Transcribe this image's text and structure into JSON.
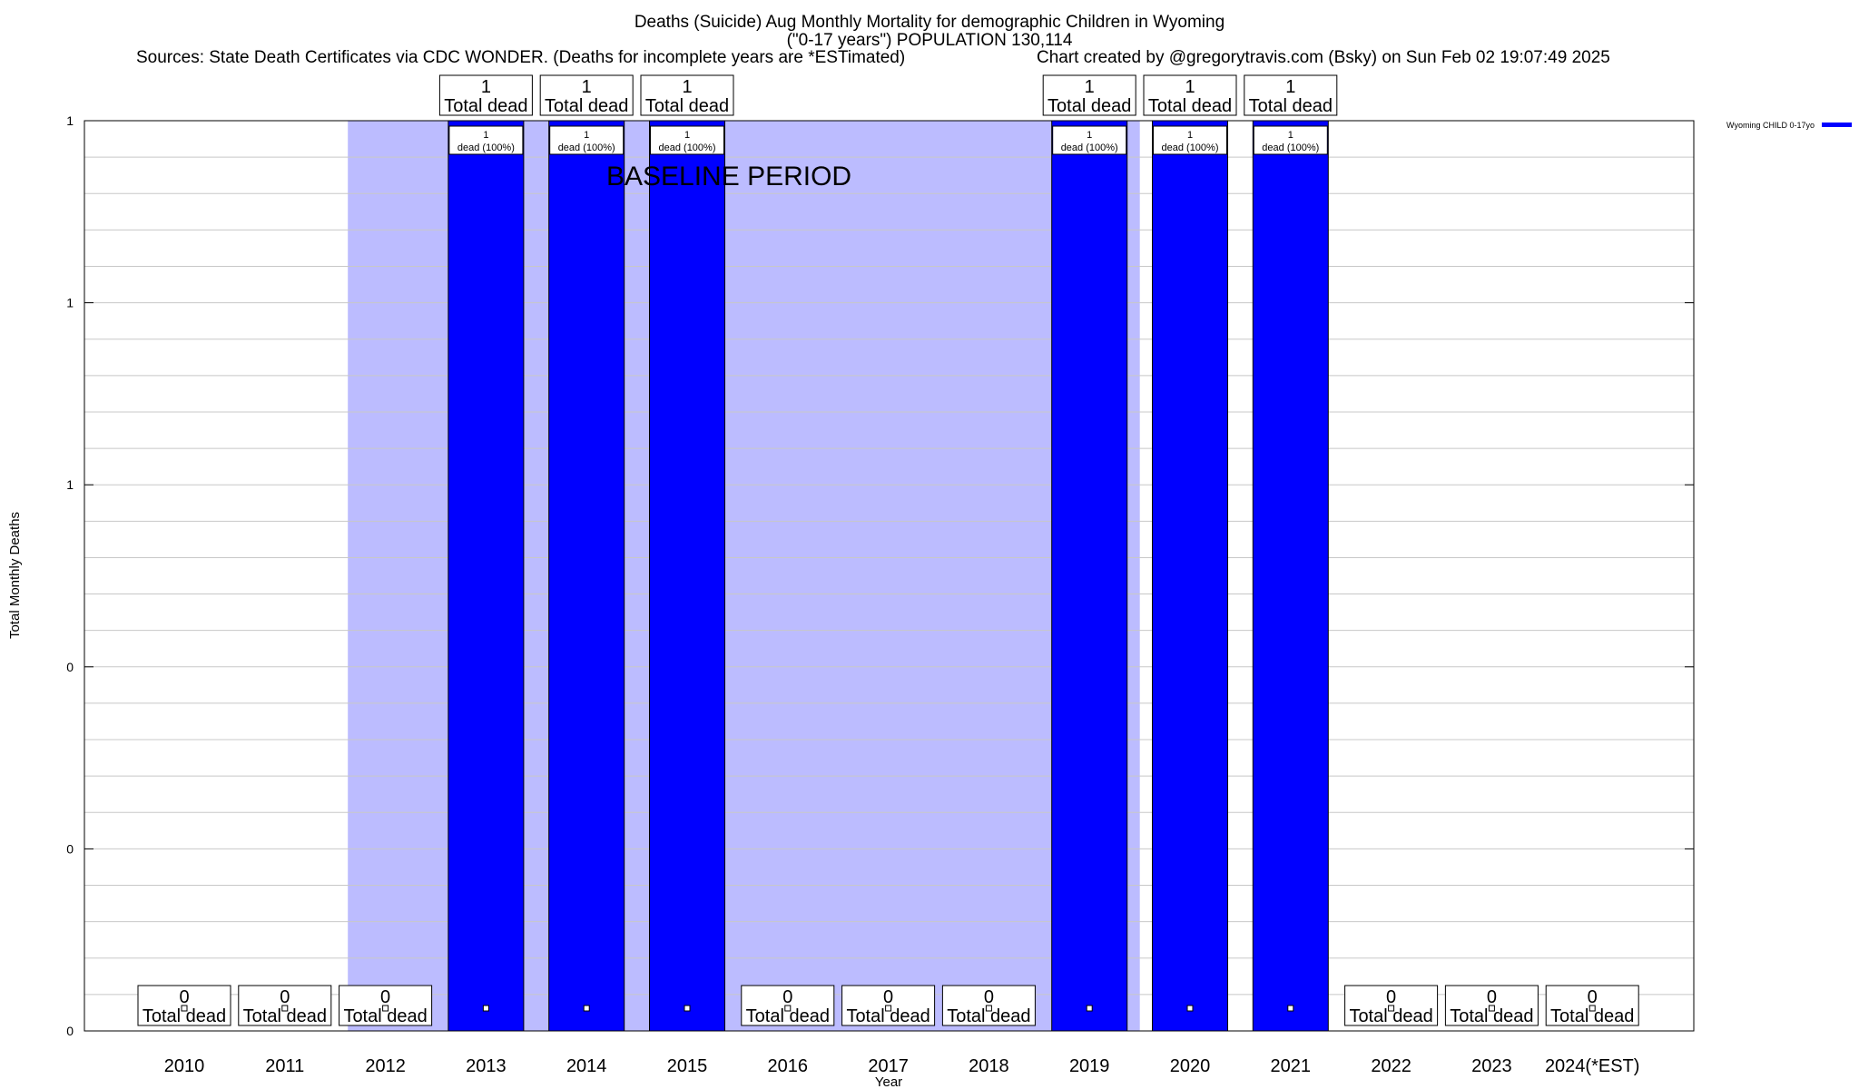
{
  "title": {
    "line1": "Deaths (Suicide) Aug Monthly Mortality for demographic Children in Wyoming",
    "line2": "(\"0-17 years\") POPULATION 130,114",
    "sources": "Sources: State Death Certificates via CDC WONDER. (Deaths for incomplete years are *ESTimated)",
    "credit": "Chart created by @gregorytravis.com (Bsky) on Sun Feb 02 19:07:49 2025"
  },
  "chart_data": {
    "type": "bar",
    "categories": [
      "2010",
      "2011",
      "2012",
      "2013",
      "2014",
      "2015",
      "2016",
      "2017",
      "2018",
      "2019",
      "2020",
      "2021",
      "2022",
      "2023",
      "2024(*EST)"
    ],
    "series": [
      {
        "name": "Wyoming CHILD 0-17yo",
        "values": [
          0,
          0,
          0,
          1,
          1,
          1,
          0,
          0,
          0,
          1,
          1,
          1,
          0,
          0,
          0
        ],
        "color": "#0000ff"
      }
    ],
    "top_labels": [
      [
        "0",
        "Total dead"
      ],
      [
        "0",
        "Total dead"
      ],
      [
        "0",
        "Total dead"
      ],
      [
        "1",
        "Total dead"
      ],
      [
        "1",
        "Total dead"
      ],
      [
        "1",
        "Total dead"
      ],
      [
        "0",
        "Total dead"
      ],
      [
        "0",
        "Total dead"
      ],
      [
        "0",
        "Total dead"
      ],
      [
        "1",
        "Total dead"
      ],
      [
        "1",
        "Total dead"
      ],
      [
        "1",
        "Total dead"
      ],
      [
        "0",
        "Total dead"
      ],
      [
        "0",
        "Total dead"
      ],
      [
        "0",
        "Total dead"
      ]
    ],
    "bar_labels": [
      null,
      null,
      null,
      [
        "1",
        "dead (100%)"
      ],
      [
        "1",
        "dead (100%)"
      ],
      [
        "1",
        "dead (100%)"
      ],
      null,
      null,
      null,
      [
        "1",
        "dead (100%)"
      ],
      [
        "1",
        "dead (100%)"
      ],
      [
        "1",
        "dead (100%)"
      ],
      null,
      null,
      null
    ],
    "ylim": [
      0,
      1
    ],
    "ytick_values": [
      0,
      0.2,
      0.4,
      0.6,
      0.8,
      1.0
    ],
    "ytick_labels": [
      "0",
      "0",
      "0",
      "1",
      "1",
      "1"
    ],
    "xlabel": "Year",
    "ylabel": "Total Monthly Deaths",
    "baseline": {
      "label": "BASELINE PERIOD",
      "start": "2012",
      "end": "2019",
      "color": "#bcbcff"
    },
    "grid": true,
    "legend_position": "top-right"
  }
}
